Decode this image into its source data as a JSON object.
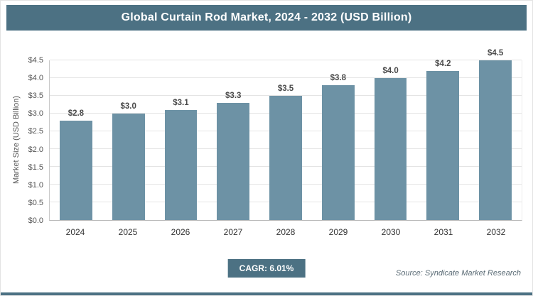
{
  "title_bar": {
    "title": "Global Curtain Rod Market, 2024 - 2032 (USD Billion)"
  },
  "footer": {
    "cagr_label": "CAGR: 6.01%",
    "source": "Source: Syndicate Market Research"
  },
  "chart_data": {
    "type": "bar",
    "title": "Global Curtain Rod Market, 2024 - 2032 (USD Billion)",
    "categories": [
      "2024",
      "2025",
      "2026",
      "2027",
      "2028",
      "2029",
      "2030",
      "2031",
      "2032"
    ],
    "values": [
      2.8,
      3.0,
      3.1,
      3.3,
      3.5,
      3.8,
      4.0,
      4.2,
      4.5
    ],
    "value_labels": [
      "$2.8",
      "$3.0",
      "$3.1",
      "$3.3",
      "$3.5",
      "$3.8",
      "$4.0",
      "$4.2",
      "$4.5"
    ],
    "xlabel": "",
    "ylabel": "Market Size (USD Billion)",
    "ylim": [
      0,
      4.5
    ],
    "ytick_step": 0.5,
    "ytick_prefix": "$",
    "grid": true,
    "legend": false,
    "colors": {
      "bar": "#6d92a5",
      "accent": "#4c7183",
      "grid": "#e4e4e4"
    }
  }
}
